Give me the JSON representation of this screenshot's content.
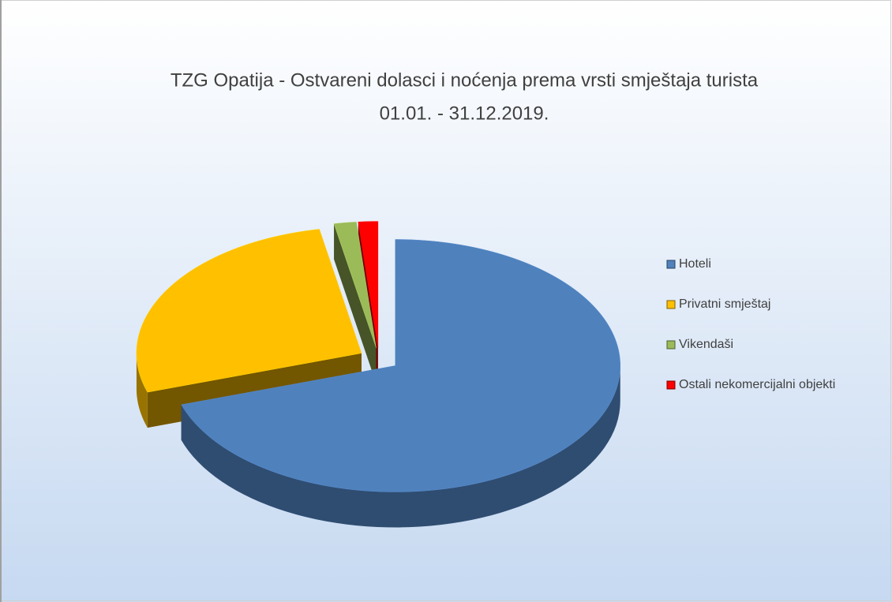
{
  "chart_data": {
    "type": "pie3d",
    "title": "TZG Opatija - Ostvareni dolasci i noćenja prema vrsti smještaja turista",
    "subtitle": "01.01. - 31.12.2019.",
    "categories": [
      "Hoteli",
      "Privatni smještaj",
      "Vikendaši",
      "Ostali nekomercijalni objekti"
    ],
    "values": [
      70,
      27,
      1.6,
      1.4
    ],
    "colors": [
      "#4f81bd",
      "#ffc000",
      "#9bbb59",
      "#ff0000"
    ],
    "legend": "right"
  }
}
